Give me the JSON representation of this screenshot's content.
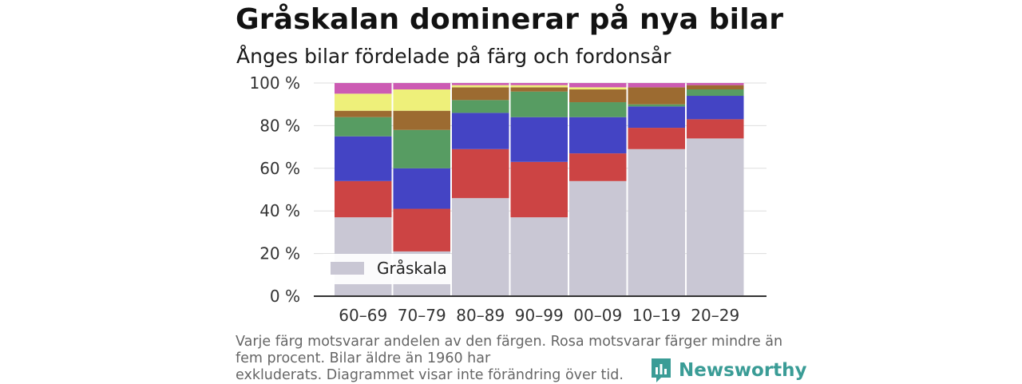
{
  "title": "Gråskalan dominerar på nya bilar",
  "subtitle": "Ånges bilar fördelade på färg och fordonsår",
  "footnote": {
    "line1": "Varje färg motsvarar andelen av den färgen. Rosa motsvarar färger mindre än",
    "line2": "fem procent. Bilar äldre än 1960 har",
    "line3": "exkluderats. Diagrammet visar inte förändring över tid."
  },
  "brand": {
    "name": "Newsworthy",
    "icon": "newsworthy-logo-icon",
    "color": "#3a9c96"
  },
  "chart_data": {
    "type": "bar",
    "stacked": true,
    "categories": [
      "60–69",
      "70–79",
      "80–89",
      "90–99",
      "00–09",
      "10–19",
      "20–29"
    ],
    "ylim": [
      0,
      100
    ],
    "yticks": [
      0,
      20,
      40,
      60,
      80,
      100
    ],
    "ytick_labels": [
      "0 %",
      "20 %",
      "40 %",
      "60 %",
      "80 %",
      "100 %"
    ],
    "grid": true,
    "legend": {
      "position": "bottom-left",
      "entries": [
        "Gråskala"
      ]
    },
    "series": [
      {
        "name": "Gråskala",
        "color": "#c9c7d4",
        "values": [
          37,
          21,
          46,
          37,
          54,
          69,
          74
        ]
      },
      {
        "color": "#cc4444",
        "values": [
          17,
          20,
          23,
          26,
          13,
          10,
          9
        ]
      },
      {
        "color": "#4444c4",
        "values": [
          21,
          19,
          17,
          21,
          17,
          10,
          11
        ]
      },
      {
        "color": "#579c62",
        "values": [
          9,
          18,
          6,
          12,
          7,
          1,
          3
        ]
      },
      {
        "color": "#9c6b31",
        "values": [
          3,
          9,
          6,
          2,
          6,
          8,
          2
        ]
      },
      {
        "color": "#eef07a",
        "values": [
          8,
          10,
          1,
          1,
          1,
          0,
          0
        ]
      },
      {
        "color": "#cc5bb3",
        "values": [
          5,
          3,
          1,
          1,
          2,
          2,
          1
        ]
      }
    ]
  }
}
